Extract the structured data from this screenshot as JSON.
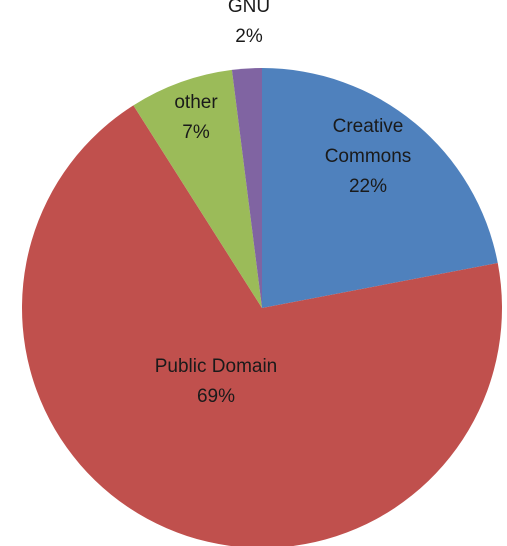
{
  "chart_data": {
    "type": "pie",
    "title": "",
    "start_angle_deg": 0,
    "direction": "clockwise",
    "slices": [
      {
        "label": "Creative Commons",
        "label_lines": [
          "Creative",
          "Commons"
        ],
        "value": 22,
        "display": "22%",
        "color": "#4f81bd"
      },
      {
        "label": "Public Domain",
        "label_lines": [
          "Public Domain"
        ],
        "value": 69,
        "display": "69%",
        "color": "#c0504d"
      },
      {
        "label": "other",
        "label_lines": [
          "other"
        ],
        "value": 7,
        "display": "7%",
        "color": "#9bbb59"
      },
      {
        "label": "GNU",
        "label_lines": [
          "GNU"
        ],
        "value": 2,
        "display": "2%",
        "color": "#8064a2"
      }
    ]
  }
}
